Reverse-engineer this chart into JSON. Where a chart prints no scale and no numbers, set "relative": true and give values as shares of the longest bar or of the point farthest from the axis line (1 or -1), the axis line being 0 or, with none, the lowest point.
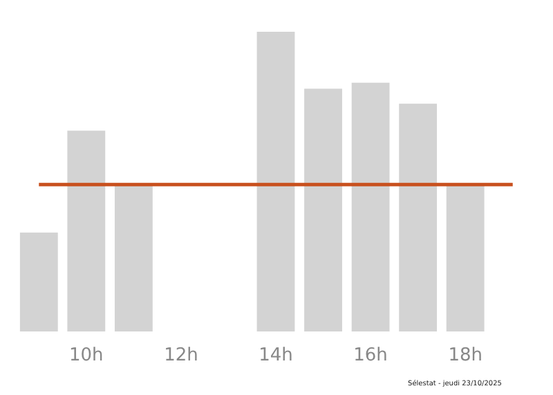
{
  "chart_data": {
    "type": "bar",
    "relative": true,
    "categories": [
      null,
      "10h",
      null,
      "12h",
      null,
      "14h",
      null,
      "16h",
      null,
      "18h",
      null
    ],
    "values": [
      0.33,
      0.67,
      0.49,
      0,
      0,
      1,
      0.81,
      0.83,
      0.76,
      0.49,
      0
    ],
    "color": "#d3d3d3",
    "ref_lines": [
      {
        "axis": "y",
        "value": 0.49,
        "color": "#c8501e"
      }
    ],
    "annotations": [
      "Sélestat - jeudi 23/10/2025"
    ]
  }
}
